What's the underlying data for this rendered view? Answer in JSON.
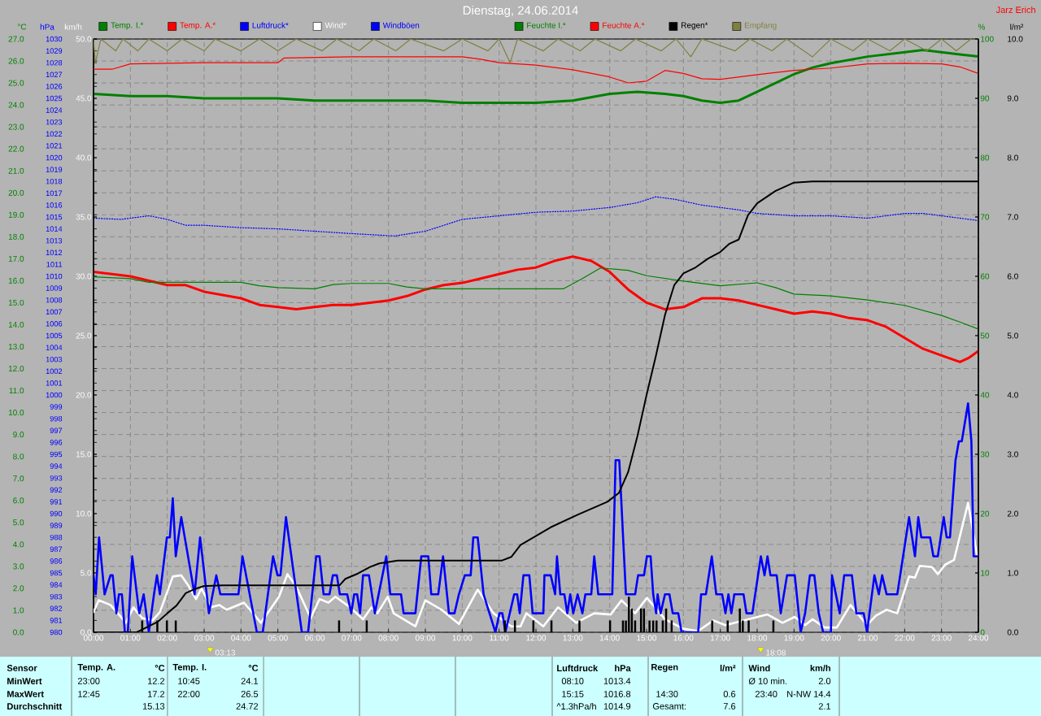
{
  "chart_data": [
    {
      "type": "line",
      "title": "Dienstag, 24.06.2014",
      "ylabel": "°C",
      "y2label": "hPa",
      "y3label": "km/h",
      "xlim": [
        0,
        24
      ],
      "xticks": [
        {
          "value": 0,
          "label": "00:00"
        },
        {
          "value": 1,
          "label": "01:00"
        },
        {
          "value": 2,
          "label": "02:00"
        },
        {
          "value": 3,
          "label": "03:00"
        },
        {
          "value": 4,
          "label": "04:00"
        },
        {
          "value": 5,
          "label": "05:00"
        },
        {
          "value": 6,
          "label": "06:00"
        },
        {
          "value": 7,
          "label": "07:00"
        },
        {
          "value": 8,
          "label": "08:00"
        },
        {
          "value": 9,
          "label": "09:00"
        },
        {
          "value": 10,
          "label": "10:00"
        },
        {
          "value": 11,
          "label": "11:00"
        },
        {
          "value": 12,
          "label": "12:00"
        },
        {
          "value": 13,
          "label": "13:00"
        },
        {
          "value": 14,
          "label": "14:00"
        },
        {
          "value": 15,
          "label": "15:00"
        },
        {
          "value": 16,
          "label": "16:00"
        },
        {
          "value": 17,
          "label": "17:00"
        },
        {
          "value": 18,
          "label": "18:00"
        },
        {
          "value": 19,
          "label": "19:00"
        },
        {
          "value": 20,
          "label": "20:00"
        },
        {
          "value": 21,
          "label": "21:00"
        },
        {
          "value": 22,
          "label": "22:00"
        },
        {
          "value": 23,
          "label": "23:00"
        },
        {
          "value": 24,
          "label": "24:00"
        }
      ],
      "ylim": [
        0,
        27
      ],
      "yticks": [
        {
          "value": 0,
          "label": "0.0"
        },
        {
          "value": 1,
          "label": "1.0"
        },
        {
          "value": 2,
          "label": "2.0"
        },
        {
          "value": 3,
          "label": "3.0"
        },
        {
          "value": 4,
          "label": "4.0"
        },
        {
          "value": 5,
          "label": "5.0"
        },
        {
          "value": 6,
          "label": "6.0"
        },
        {
          "value": 7,
          "label": "7.0"
        },
        {
          "value": 8,
          "label": "8.0"
        },
        {
          "value": 9,
          "label": "9.0"
        },
        {
          "value": 10,
          "label": "10.0"
        },
        {
          "value": 11,
          "label": "11.0"
        },
        {
          "value": 12,
          "label": "12.0"
        },
        {
          "value": 13,
          "label": "13.0"
        },
        {
          "value": 14,
          "label": "14.0"
        },
        {
          "value": 15,
          "label": "15.0"
        },
        {
          "value": 16,
          "label": "16.0"
        },
        {
          "value": 17,
          "label": "17.0"
        },
        {
          "value": 18,
          "label": "18.0"
        },
        {
          "value": 19,
          "label": "19.0"
        },
        {
          "value": 20,
          "label": "20.0"
        },
        {
          "value": 21,
          "label": "21.0"
        },
        {
          "value": 22,
          "label": "22.0"
        },
        {
          "value": 23,
          "label": "23.0"
        },
        {
          "value": 24,
          "label": "24.0"
        },
        {
          "value": 25,
          "label": "25.0"
        },
        {
          "value": 26,
          "label": "26.0"
        },
        {
          "value": 27,
          "label": "27.0"
        }
      ],
      "y2lim": [
        980,
        1030
      ],
      "y2ticks": [
        980,
        981,
        982,
        983,
        984,
        985,
        986,
        987,
        988,
        989,
        990,
        991,
        992,
        993,
        994,
        995,
        996,
        997,
        998,
        999,
        1000,
        1001,
        1002,
        1003,
        1004,
        1005,
        1006,
        1007,
        1008,
        1009,
        1010,
        1011,
        1012,
        1013,
        1014,
        1015,
        1016,
        1017,
        1018,
        1019,
        1020,
        1021,
        1022,
        1023,
        1024,
        1025,
        1026,
        1027,
        1028,
        1029,
        1030
      ],
      "y3lim": [
        0,
        50
      ],
      "y3ticks": [
        {
          "value": 0,
          "label": "0.0"
        },
        {
          "value": 5,
          "label": "5.0"
        },
        {
          "value": 10,
          "label": "10.0"
        },
        {
          "value": 15,
          "label": "15.0"
        },
        {
          "value": 20,
          "label": "20.0"
        },
        {
          "value": 25,
          "label": "25.0"
        },
        {
          "value": 30,
          "label": "30.0"
        },
        {
          "value": 35,
          "label": "35.0"
        },
        {
          "value": 40,
          "label": "40.0"
        },
        {
          "value": 45,
          "label": "45.0"
        },
        {
          "value": 50,
          "label": "50.0"
        }
      ],
      "grid": true,
      "legend": "top",
      "series": [
        {
          "name": "Temp. I.*",
          "color": "#008000",
          "x": [
            0,
            1,
            2,
            3,
            4,
            5,
            6,
            7,
            8,
            9,
            10,
            11,
            12,
            13,
            14,
            14.75,
            15.5,
            16,
            16.5,
            17,
            17.5,
            18,
            18.5,
            19,
            19.5,
            20,
            21,
            22,
            22.5,
            23,
            23.5,
            24
          ],
          "values": [
            24.5,
            24.4,
            24.4,
            24.3,
            24.3,
            24.3,
            24.2,
            24.2,
            24.2,
            24.2,
            24.1,
            24.1,
            24.1,
            24.2,
            24.5,
            24.6,
            24.5,
            24.4,
            24.2,
            24.1,
            24.2,
            24.6,
            25.0,
            25.4,
            25.7,
            25.9,
            26.2,
            26.4,
            26.5,
            26.4,
            26.3,
            26.2
          ]
        },
        {
          "name": "Temp. A.*",
          "color": "#ff0000",
          "x": [
            0,
            1,
            2,
            2.5,
            3,
            4,
            4.5,
            5,
            5.5,
            6,
            6.5,
            7,
            8,
            8.5,
            9,
            9.5,
            10,
            10.5,
            11,
            11.5,
            12,
            12.5,
            13,
            13.5,
            14,
            14.5,
            15,
            15.5,
            16,
            16.5,
            17,
            17.5,
            18,
            18.5,
            19,
            19.5,
            20,
            20.5,
            21,
            21.5,
            22,
            22.5,
            23,
            23.5,
            23.75,
            24
          ],
          "values": [
            16.4,
            16.2,
            15.8,
            15.8,
            15.5,
            15.2,
            14.9,
            14.8,
            14.7,
            14.8,
            14.9,
            14.9,
            15.1,
            15.3,
            15.6,
            15.8,
            15.9,
            16.1,
            16.3,
            16.5,
            16.6,
            16.9,
            17.1,
            16.9,
            16.4,
            15.6,
            15.0,
            14.7,
            14.8,
            15.2,
            15.2,
            15.1,
            14.9,
            14.7,
            14.5,
            14.6,
            14.5,
            14.3,
            14.2,
            13.9,
            13.4,
            12.9,
            12.6,
            12.3,
            12.5,
            12.8
          ]
        },
        {
          "name": "Luftdruck*",
          "color": "#0000ff",
          "axis": "y2",
          "line_style": "dotted",
          "x": [
            0,
            0.75,
            1.5,
            2,
            2.5,
            3,
            4,
            5,
            6,
            7,
            8.17,
            9,
            10,
            11,
            12,
            13,
            14,
            14.75,
            15.25,
            15.75,
            16.5,
            17.5,
            18,
            19,
            20,
            21,
            22,
            22.5,
            23.5,
            24
          ],
          "values": [
            1014.9,
            1014.8,
            1015.1,
            1014.8,
            1014.3,
            1014.3,
            1014.1,
            1014.0,
            1013.8,
            1013.6,
            1013.4,
            1013.8,
            1014.8,
            1015.1,
            1015.4,
            1015.5,
            1015.8,
            1016.2,
            1016.7,
            1016.5,
            1016.0,
            1015.6,
            1015.3,
            1015.1,
            1015.1,
            1014.9,
            1015.3,
            1015.3,
            1014.9,
            1014.7
          ]
        },
        {
          "name": "Wind*",
          "color": "#ffffff",
          "axis": "y3",
          "x": [
            0,
            0.14,
            0.46,
            0.88,
            1.08,
            1.32,
            1.6,
            1.8,
            2.15,
            2.38,
            2.58,
            2.78,
            2.93,
            3.18,
            3.41,
            3.61,
            4.08,
            4.54,
            5.03,
            5.26,
            5.49,
            5.89,
            6.13,
            6.37,
            6.56,
            6.92,
            7.31,
            7.54,
            7.7,
            7.98,
            8.14,
            8.73,
            9.0,
            9.44,
            9.91,
            10.42,
            10.85,
            11.33,
            11.58,
            11.74,
            12.2,
            12.6,
            13.09,
            13.58,
            14.03,
            14.32,
            14.69,
            15.01,
            15.5,
            15.99,
            16.4,
            16.81,
            17.14,
            17.63,
            18.28,
            18.69,
            19.02,
            19.3,
            19.5,
            19.83,
            20.16,
            20.53,
            20.98,
            21.22,
            21.51,
            21.8,
            22.12,
            22.28,
            22.41,
            22.74,
            22.9,
            23.1,
            23.34,
            23.72,
            23.84,
            23.96
          ],
          "values": [
            1.7,
            2.7,
            2.3,
            0.8,
            2.1,
            1.2,
            1.0,
            1.7,
            4.7,
            4.8,
            3.9,
            2.8,
            3.7,
            2.1,
            2.3,
            1.9,
            2.5,
            0.8,
            3.0,
            4.9,
            3.9,
            1.2,
            2.8,
            2.5,
            3.0,
            2.2,
            1.1,
            2.1,
            1.6,
            3.0,
            1.6,
            0.5,
            2.7,
            1.9,
            0.7,
            3.6,
            1.6,
            0.5,
            0.5,
            1.6,
            0.5,
            2.1,
            0.8,
            1.6,
            1.5,
            2.7,
            1.6,
            2.9,
            1.1,
            0.3,
            0.1,
            1.0,
            0.6,
            1.0,
            1.5,
            0.8,
            1.3,
            0.6,
            1.1,
            0.4,
            0.4,
            2.3,
            0.6,
            1.4,
            1.9,
            1.6,
            4.7,
            4.6,
            5.6,
            5.5,
            4.9,
            5.7,
            6.1,
            10.9,
            8.8,
            6.5
          ]
        },
        {
          "name": "Windböen",
          "color": "#0000ff",
          "axis": "y3",
          "x": [
            0,
            0.06,
            0.15,
            0.3,
            0.46,
            0.52,
            0.62,
            0.69,
            0.77,
            0.85,
            0.93,
            1.05,
            1.24,
            1.36,
            1.5,
            1.64,
            1.72,
            1.8,
            1.99,
            2.07,
            2.15,
            2.23,
            2.38,
            2.74,
            2.89,
            3.13,
            3.33,
            3.44,
            3.93,
            4.04,
            4.43,
            4.59,
            4.87,
            4.99,
            5.07,
            5.22,
            5.65,
            5.82,
            6.04,
            6.13,
            6.24,
            6.4,
            6.49,
            6.6,
            6.68,
            6.88,
            6.99,
            7.07,
            7.15,
            7.23,
            7.31,
            7.47,
            7.63,
            7.94,
            8.05,
            8.34,
            8.41,
            8.73,
            8.89,
            9.08,
            9.16,
            9.35,
            9.48,
            9.64,
            9.79,
            9.91,
            10.07,
            10.23,
            10.3,
            10.42,
            10.58,
            10.9,
            11.01,
            11.09,
            11.17,
            11.41,
            11.49,
            11.56,
            11.66,
            11.82,
            11.91,
            12.2,
            12.23,
            12.4,
            12.52,
            12.57,
            12.66,
            12.77,
            12.85,
            12.93,
            13.01,
            13.13,
            13.26,
            13.34,
            13.5,
            13.58,
            13.69,
            14.07,
            14.16,
            14.26,
            14.44,
            14.69,
            14.77,
            14.93,
            15.01,
            15.11,
            15.18,
            15.26,
            15.3,
            15.38,
            15.5,
            15.62,
            15.71,
            15.86,
            15.95,
            16.4,
            16.48,
            16.61,
            16.77,
            16.89,
            17.05,
            17.14,
            17.22,
            17.3,
            17.38,
            17.63,
            17.71,
            17.87,
            18.1,
            18.2,
            18.28,
            18.36,
            18.53,
            18.64,
            18.81,
            19.02,
            19.18,
            19.3,
            19.43,
            19.55,
            19.67,
            19.79,
            20.0,
            20.03,
            20.24,
            20.36,
            20.57,
            20.69,
            20.89,
            20.98,
            21.18,
            21.3,
            21.39,
            21.51,
            21.8,
            22.12,
            22.28,
            22.37,
            22.45,
            22.69,
            22.78,
            22.9,
            23.06,
            23.14,
            23.23,
            23.38,
            23.47,
            23.55,
            23.72,
            23.81,
            23.87,
            23.96
          ],
          "values": [
            4.8,
            3.2,
            8.0,
            3.2,
            4.8,
            4.8,
            1.6,
            3.2,
            3.2,
            0,
            0,
            6.4,
            1.6,
            3.2,
            0,
            3.2,
            4.8,
            3.2,
            8.0,
            8.0,
            11.3,
            6.4,
            9.7,
            3.2,
            8.0,
            1.6,
            4.8,
            3.2,
            3.2,
            6.4,
            0,
            0,
            6.4,
            4.8,
            4.8,
            9.7,
            0,
            0,
            6.4,
            6.4,
            3.2,
            3.2,
            4.8,
            4.8,
            3.2,
            3.2,
            1.6,
            3.2,
            3.2,
            1.6,
            4.8,
            4.8,
            1.6,
            6.4,
            3.2,
            3.2,
            1.6,
            1.6,
            6.4,
            6.4,
            3.2,
            3.2,
            6.4,
            1.6,
            1.6,
            3.2,
            4.8,
            4.8,
            8.0,
            8.0,
            3.2,
            0,
            1.6,
            1.6,
            0,
            3.2,
            3.2,
            1.6,
            4.8,
            4.8,
            1.6,
            1.6,
            4.8,
            4.8,
            3.2,
            6.4,
            3.2,
            3.2,
            1.6,
            3.2,
            1.6,
            3.2,
            1.6,
            3.2,
            3.2,
            6.4,
            3.2,
            3.2,
            14.5,
            14.5,
            3.2,
            3.2,
            4.8,
            4.8,
            6.4,
            6.4,
            3.2,
            1.6,
            3.2,
            1.6,
            3.2,
            3.2,
            1.6,
            1.6,
            0,
            0,
            3.2,
            3.2,
            6.4,
            3.2,
            3.2,
            1.6,
            3.2,
            1.6,
            3.2,
            3.2,
            1.6,
            1.6,
            6.4,
            4.8,
            6.4,
            4.8,
            4.8,
            1.6,
            4.8,
            4.8,
            0,
            1.6,
            4.8,
            4.8,
            1.6,
            0,
            0,
            4.8,
            1.6,
            4.8,
            4.8,
            1.6,
            1.6,
            0,
            4.8,
            3.2,
            4.8,
            3.2,
            3.2,
            9.7,
            6.4,
            9.7,
            8.0,
            8.0,
            6.4,
            6.4,
            9.7,
            8.0,
            8.0,
            14.5,
            16.1,
            16.1,
            19.3,
            16.1,
            6.4,
            6.4
          ]
        }
      ],
      "annotations": [
        "Jarz Erich",
        "03:13",
        "18:08",
        "Sensor",
        "MinWert",
        "MaxWert",
        "Durchschnitt",
        "Temp. A.",
        "°C",
        "23:00",
        "12.2",
        "12:45",
        "17.2",
        "15.13",
        "Temp. I.",
        "°C",
        "10:45",
        "24.1",
        "22:00",
        "26.5",
        "24.72",
        "Luftdruck",
        "hPa",
        "08:10",
        "1013.4",
        "15:15",
        "1016.8",
        "^1.3hPa/h",
        "1014.9",
        "Regen",
        "l/m²",
        "14:30",
        "0.6",
        "Gesamt:",
        "7.6",
        "Wind",
        "km/h",
        "Ø 10 min.",
        "2.0",
        "23:40",
        "N-NW 14.4",
        "2.1"
      ]
    },
    {
      "type": "line",
      "ylabel": "%",
      "y2label": "l/m²",
      "tick_labels": "y",
      "legend": "top",
      "xlim": [
        0,
        24
      ],
      "ylim": [
        0,
        100
      ],
      "yticks": [
        0,
        10,
        20,
        30,
        40,
        50,
        60,
        70,
        80,
        90,
        100
      ],
      "y2lim": [
        0,
        10
      ],
      "y2ticks": [
        {
          "value": 0,
          "label": "0.0"
        },
        {
          "value": 1,
          "label": "1.0"
        },
        {
          "value": 2,
          "label": "2.0"
        },
        {
          "value": 3,
          "label": "3.0"
        },
        {
          "value": 4,
          "label": "4.0"
        },
        {
          "value": 5,
          "label": "5.0"
        },
        {
          "value": 6,
          "label": "6.0"
        },
        {
          "value": 7,
          "label": "7.0"
        },
        {
          "value": 8,
          "label": "8.0"
        },
        {
          "value": 9,
          "label": "9.0"
        },
        {
          "value": 10,
          "label": "10.0"
        }
      ],
      "series": [
        {
          "name": "Feuchte I.*",
          "color": "#008000",
          "x": [
            0,
            1,
            1.5,
            4,
            4.5,
            5,
            6,
            6.5,
            7,
            8,
            8.5,
            9,
            12.75,
            13.25,
            13.75,
            14.5,
            15,
            16,
            17,
            18,
            18.5,
            19,
            20,
            21,
            22,
            23,
            23.5,
            24
          ],
          "values": [
            59.9,
            59.6,
            59.0,
            59.0,
            58.4,
            58.1,
            57.9,
            58.6,
            58.8,
            58.8,
            58.2,
            57.9,
            57.9,
            59.6,
            61.4,
            61.0,
            60.1,
            59.2,
            58.4,
            58.9,
            58.1,
            57.0,
            56.7,
            56.0,
            55.1,
            53.4,
            52.3,
            51.1
          ]
        },
        {
          "name": "Feuchte A.*",
          "color": "#ff0000",
          "x": [
            0,
            0.5,
            1,
            3,
            5,
            5.17,
            7,
            10,
            10.5,
            11,
            12,
            13,
            14,
            14.5,
            15,
            15.5,
            16,
            16.5,
            17,
            18,
            19,
            20,
            21,
            22,
            23,
            23.5,
            24
          ],
          "values": [
            94.9,
            94.9,
            95.8,
            96.0,
            96.0,
            96.8,
            97.0,
            97.0,
            96.6,
            96.0,
            95.6,
            94.8,
            93.6,
            92.6,
            92.9,
            94.7,
            94.2,
            93.3,
            93.2,
            94.0,
            94.7,
            95.1,
            95.8,
            95.9,
            95.8,
            95.3,
            94.2
          ]
        },
        {
          "name": "Regen*",
          "color": "#000000",
          "axis": "y2",
          "x": [
            0,
            1.17,
            1.33,
            1.75,
            2,
            2.25,
            2.5,
            2.75,
            3,
            3.5,
            6.67,
            6.83,
            7.17,
            7.5,
            7.75,
            8.25,
            11.08,
            11.33,
            11.58,
            12.4,
            13.13,
            13.94,
            14.25,
            14.5,
            14.75,
            15,
            15.25,
            15.5,
            15.75,
            16,
            16.33,
            16.67,
            17,
            17.25,
            17.5,
            17.75,
            18,
            18.5,
            19,
            19.5,
            24
          ],
          "values": [
            0,
            0,
            0.05,
            0.18,
            0.32,
            0.45,
            0.66,
            0.73,
            0.78,
            0.79,
            0.79,
            0.9,
            0.99,
            1.1,
            1.16,
            1.21,
            1.21,
            1.27,
            1.47,
            1.77,
            1.98,
            2.2,
            2.35,
            2.7,
            3.3,
            4.0,
            4.65,
            5.35,
            5.85,
            6.05,
            6.15,
            6.3,
            6.41,
            6.55,
            6.62,
            7.03,
            7.23,
            7.44,
            7.58,
            7.6,
            7.6
          ]
        },
        {
          "name": "Empfang",
          "color": "#808040",
          "x": [
            0,
            0.05,
            0.2,
            0.6,
            0.8,
            1.2,
            1.5,
            2.0,
            2.4,
            3.0,
            3.3,
            4.0,
            4.5,
            5.0,
            5.5,
            6.2,
            6.6,
            7.2,
            7.6,
            8.2,
            8.6,
            9.5,
            10.0,
            10.7,
            11.0,
            11.3,
            11.5,
            12.2,
            12.6,
            13.2,
            13.6,
            14.3,
            14.7,
            15.4,
            15.8,
            16.2,
            16.5,
            17.4,
            17.8,
            18.4,
            18.8,
            19.5,
            20.0,
            20.6,
            21.0,
            21.6,
            22.0,
            22.6,
            23.0,
            23.4,
            23.8,
            24.0
          ],
          "values": [
            100,
            96,
            100,
            98,
            100,
            98,
            100,
            98,
            100,
            98,
            100,
            98,
            100,
            98,
            100,
            98,
            100,
            98,
            100,
            98,
            100,
            98,
            100,
            98,
            100,
            96,
            100,
            98,
            100,
            98,
            100,
            98,
            100,
            98,
            100,
            97,
            100,
            98,
            100,
            98,
            100,
            97,
            100,
            98,
            100,
            98,
            100,
            98,
            100,
            98,
            100,
            100
          ]
        },
        {
          "type": "bar",
          "color": "#000000",
          "axis": "y2",
          "x": [
            1.32,
            1.73,
            1.99,
            2.23,
            6.66,
            7.41,
            11.16,
            11.43,
            11.93,
            12.42,
            13.18,
            14.01,
            14.36,
            14.44,
            14.52,
            14.6,
            14.69,
            14.85,
            14.93,
            15.08,
            15.18,
            15.27,
            15.44,
            15.53,
            15.68,
            16.78,
            17.2,
            17.53,
            17.61,
            17.77,
            18.44
          ],
          "values": [
            0.2,
            0.2,
            0.2,
            0.2,
            0.2,
            0.2,
            0.2,
            0.2,
            0.2,
            0.2,
            0.2,
            0.2,
            0.2,
            0.2,
            0.6,
            0.4,
            0.2,
            0.4,
            0.4,
            0.2,
            0.2,
            0.2,
            0.2,
            0.4,
            0.2,
            0.2,
            0.2,
            0.4,
            0.2,
            0.2,
            0.2
          ]
        }
      ]
    }
  ]
}
